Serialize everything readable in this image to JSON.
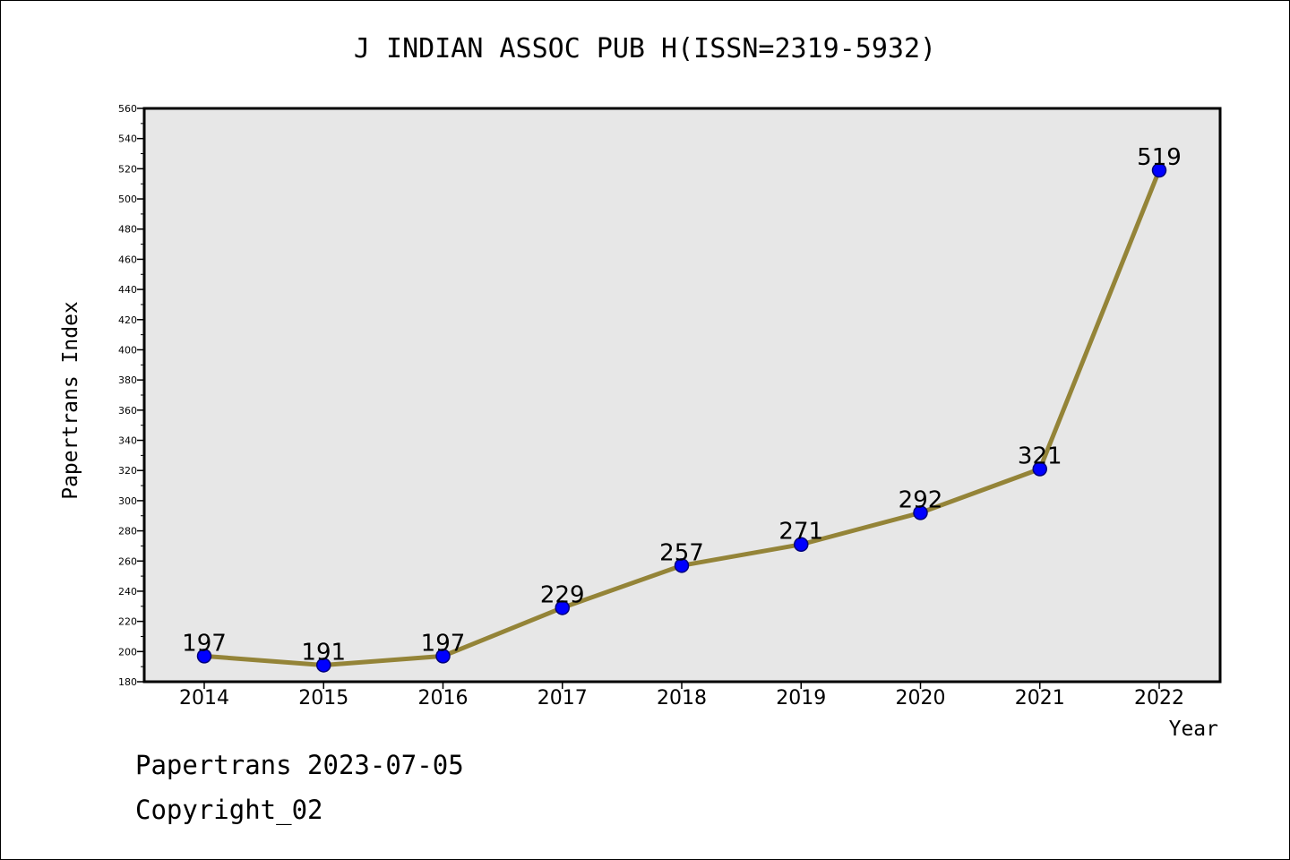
{
  "chart_data": {
    "type": "line",
    "title": "J INDIAN ASSOC PUB H(ISSN=2319-5932)",
    "xlabel": "Year",
    "ylabel": "Papertrans Index",
    "categories": [
      "2014",
      "2015",
      "2016",
      "2017",
      "2018",
      "2019",
      "2020",
      "2021",
      "2022"
    ],
    "values": [
      197,
      191,
      197,
      229,
      257,
      271,
      292,
      321,
      519
    ],
    "ylim": [
      180,
      560
    ],
    "y_ticks": [
      180,
      200,
      220,
      240,
      260,
      280,
      300,
      320,
      340,
      360,
      380,
      400,
      420,
      440,
      460,
      480,
      500,
      520,
      540,
      560
    ],
    "grid": false,
    "data_labels": true,
    "colors": {
      "line": "#948438",
      "marker_fill": "#0000ff",
      "marker_stroke": "#00007a",
      "plot_bg": "#e7e7e7"
    }
  },
  "footer": {
    "line1": "Papertrans 2023-07-05",
    "line2": "Copyright_02"
  }
}
